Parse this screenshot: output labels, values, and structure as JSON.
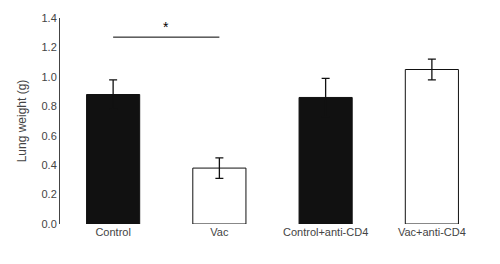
{
  "chart_data": {
    "type": "bar",
    "categories": [
      "Control",
      "Vac",
      "Control+anti-CD4",
      "Vac+anti-CD4"
    ],
    "values": [
      0.88,
      0.38,
      0.86,
      1.05
    ],
    "errors": [
      0.1,
      0.07,
      0.13,
      0.07
    ],
    "colors": [
      "#111111",
      "#ffffff",
      "#111111",
      "#ffffff"
    ],
    "ylabel": "Lung weight (g)",
    "ylim": [
      0.0,
      1.4
    ],
    "yticks": [
      {
        "value": 0.0,
        "label": "0.0"
      },
      0.2,
      0.4,
      0.6,
      0.8,
      {
        "value": 1.0,
        "label": "1.0"
      },
      1.2,
      1.4
    ],
    "annotations": [
      {
        "text": "*",
        "from": "Control",
        "to": "Vac",
        "y": 1.27
      }
    ],
    "grid": false
  }
}
